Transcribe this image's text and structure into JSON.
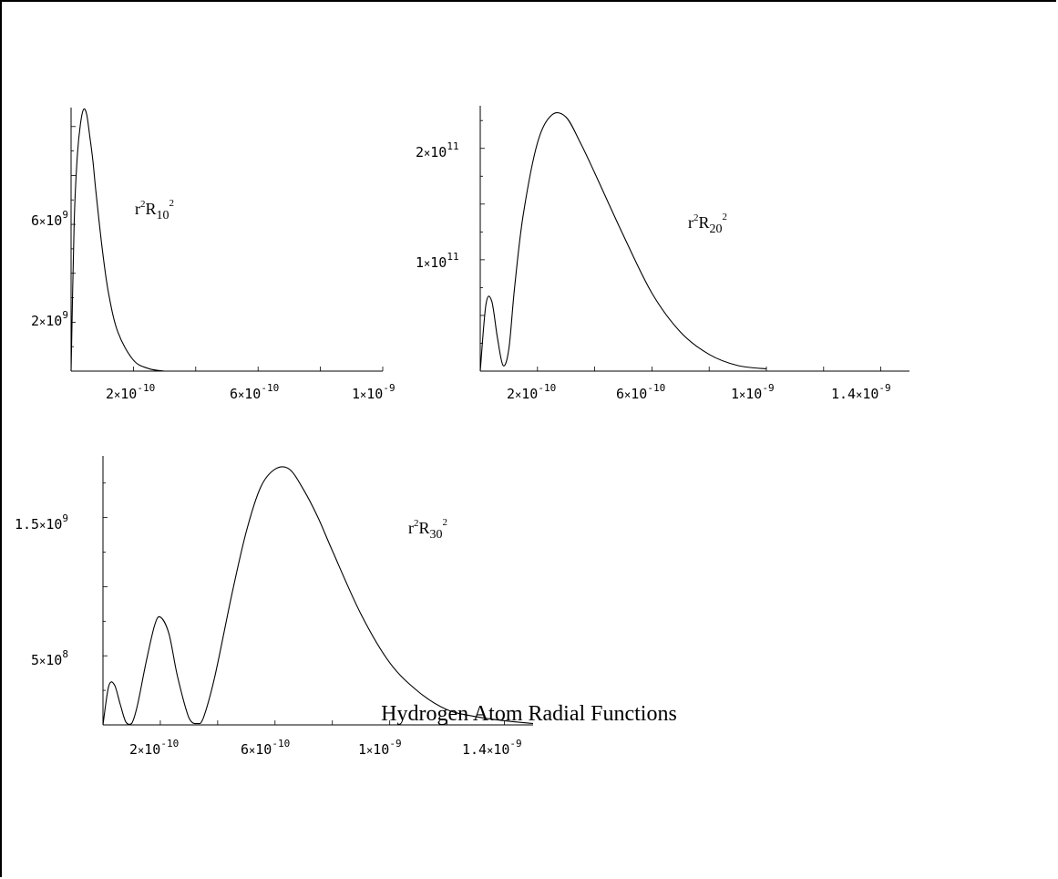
{
  "caption": "Hydrogen Atom Radial Functions",
  "chart_data": [
    {
      "type": "line",
      "title": "",
      "annotation": "r²R₁₀²",
      "x_tick_labels": [
        "2×10⁻¹⁰",
        "6×10⁻¹⁰",
        "1×10⁻⁹"
      ],
      "y_tick_labels": [
        "2×10⁹",
        "6×10⁹"
      ],
      "xlim": [
        0,
        1e-09
      ],
      "ylim": [
        0,
        10700000000.0
      ],
      "series": [
        {
          "x": [
            0,
            1e-11,
            2e-11,
            3e-11,
            4e-11,
            5e-11,
            6e-11,
            7e-11,
            8e-11,
            1e-10,
            1.2e-10,
            1.5e-10,
            2e-10,
            2.5e-10,
            3e-10
          ],
          "values": [
            0,
            6100000000.0,
            8800000000.0,
            10100000000.0,
            10700000000.0,
            10500000000.0,
            9600000000.0,
            8600000000.0,
            7300000000.0,
            5000000000.0,
            3200000000.0,
            1600000000.0,
            450000000.0,
            100000000.0,
            0
          ]
        }
      ]
    },
    {
      "type": "line",
      "title": "",
      "annotation": "r²R₂₀²",
      "x_tick_labels": [
        "2×10⁻¹⁰",
        "6×10⁻¹⁰",
        "1×10⁻⁹",
        "1.4×10⁻⁹"
      ],
      "y_tick_labels": [
        "1×10¹¹",
        "2×10¹¹"
      ],
      "xlim": [
        0,
        1.5e-09
      ],
      "ylim": [
        0,
        235000000000.0
      ],
      "series": [
        {
          "x": [
            0,
            2e-11,
            4e-11,
            6e-11,
            8e-11,
            1e-10,
            1.2e-10,
            1.5e-10,
            2e-10,
            2.5e-10,
            3e-10,
            3.5e-10,
            4e-10,
            5e-10,
            6e-10,
            7e-10,
            8e-10,
            9e-10,
            1e-09
          ],
          "values": [
            0,
            60000000000.0,
            63000000000.0,
            30000000000.0,
            5000000000.0,
            20000000000.0,
            75000000000.0,
            140000000000.0,
            205000000000.0,
            230000000000.0,
            228000000000.0,
            205000000000.0,
            178000000000.0,
            122000000000.0,
            70000000000.0,
            35000000000.0,
            15000000000.0,
            5000000000.0,
            2000000000.0
          ]
        }
      ]
    },
    {
      "type": "line",
      "title": "",
      "annotation": "r²R₃₀²",
      "x_tick_labels": [
        "2×10⁻¹⁰",
        "6×10⁻¹⁰",
        "1×10⁻⁹",
        "1.4×10⁻⁹"
      ],
      "y_tick_labels": [
        "5×10⁸",
        "1.5×10⁹"
      ],
      "xlim": [
        0,
        1.5e-09
      ],
      "ylim": [
        0,
        1900000000.0
      ],
      "series": [
        {
          "x": [
            0,
            2e-11,
            4e-11,
            6e-11,
            8e-11,
            1e-10,
            1.2e-10,
            1.5e-10,
            1.8e-10,
            2e-10,
            2.3e-10,
            2.6e-10,
            3e-10,
            3.3e-10,
            3.5e-10,
            3.9e-10,
            4.5e-10,
            5e-10,
            5.5e-10,
            6e-10,
            6.5e-10,
            7e-10,
            7.5e-10,
            8e-10,
            9e-10,
            1e-09,
            1.1e-09,
            1.2e-09,
            1.3e-09,
            1.4e-09,
            1.5e-09
          ],
          "values": [
            0,
            280000000.0,
            290000000.0,
            150000000.0,
            20000000.0,
            10000000.0,
            140000000.0,
            450000000.0,
            720000000.0,
            780000000.0,
            660000000.0,
            350000000.0,
            50000000.0,
            10000000.0,
            50000000.0,
            350000000.0,
            950000000.0,
            1400000000.0,
            1720000000.0,
            1850000000.0,
            1850000000.0,
            1700000000.0,
            1500000000.0,
            1260000000.0,
            800000000.0,
            450000000.0,
            240000000.0,
            110000000.0,
            60000000.0,
            30000000.0,
            10000000.0
          ]
        }
      ]
    }
  ]
}
